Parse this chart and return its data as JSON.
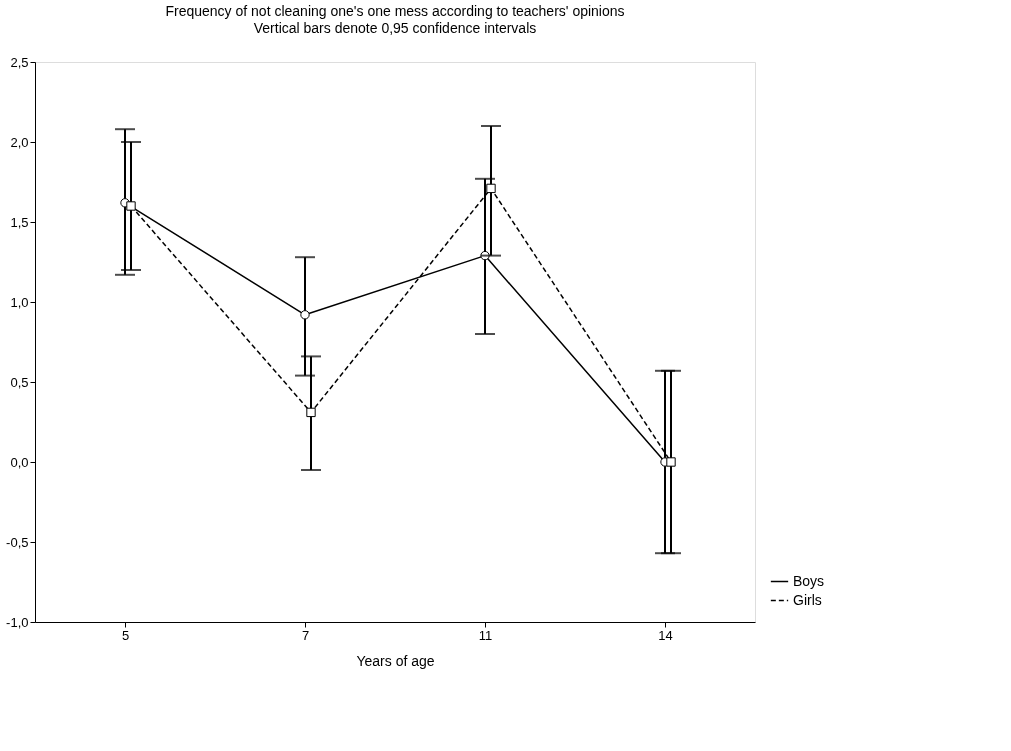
{
  "chart_data": {
    "type": "line",
    "title": "Frequency of not cleaning one's one mess according to teachers' opinions",
    "subtitle": "Vertical bars denote 0,95 confidence intervals",
    "xlabel": "Years of age",
    "categories": [
      "5",
      "7",
      "11",
      "14"
    ],
    "series": [
      {
        "name": "Boys",
        "color": "#000000",
        "marker": "circle",
        "line_style": "solid",
        "values": [
          1.62,
          0.92,
          1.29,
          0.0
        ],
        "errors": [
          [
            1.17,
            2.08
          ],
          [
            0.54,
            1.28
          ],
          [
            0.8,
            1.77
          ],
          [
            -0.57,
            0.57
          ]
        ]
      },
      {
        "name": "Girls",
        "color": "#000000",
        "marker": "square",
        "line_style": "dashed",
        "values": [
          1.6,
          0.31,
          1.71,
          0.0
        ],
        "errors": [
          [
            1.2,
            2.0
          ],
          [
            -0.05,
            0.66
          ],
          [
            1.29,
            2.1
          ],
          [
            -0.57,
            0.57
          ]
        ]
      }
    ],
    "ylim": [
      -1.0,
      2.5
    ],
    "yticks": [
      {
        "value": -1.0,
        "label": "-1,0"
      },
      {
        "value": -0.5,
        "label": "-0,5"
      },
      {
        "value": 0.0,
        "label": "0,0"
      },
      {
        "value": 0.5,
        "label": "0,5"
      },
      {
        "value": 1.0,
        "label": "1,0"
      },
      {
        "value": 1.5,
        "label": "1,5"
      },
      {
        "value": 2.0,
        "label": "2,0"
      },
      {
        "value": 2.5,
        "label": "2,5"
      }
    ],
    "grid": false,
    "legend": "bottom right"
  }
}
